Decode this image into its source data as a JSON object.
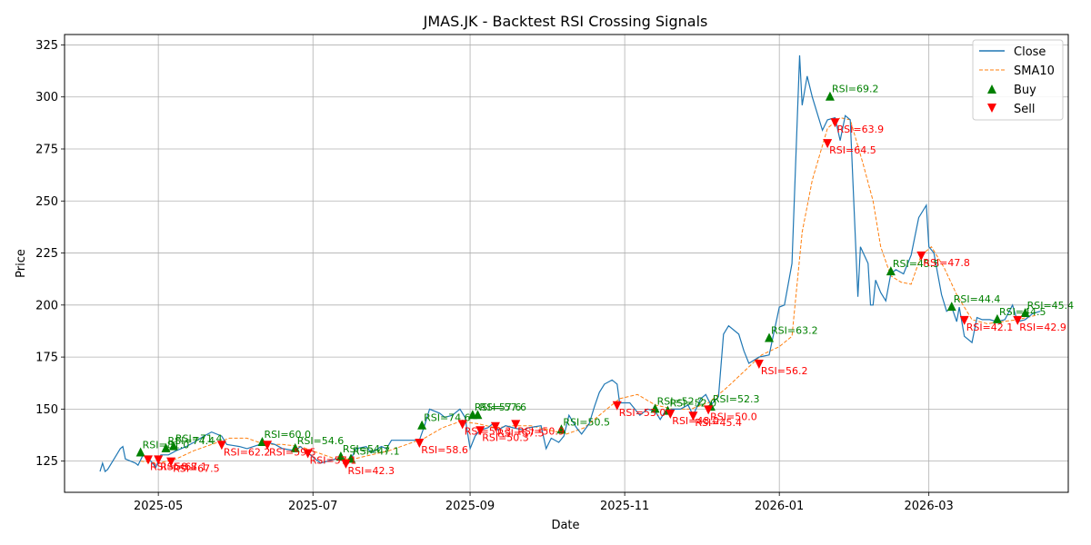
{
  "chart_data": {
    "type": "line",
    "title": "JMAS.JK - Backtest RSI Crossing Signals",
    "xlabel": "Date",
    "ylabel": "Price",
    "x_range": [
      "2025-03-25",
      "2026-04-25"
    ],
    "ylim": [
      110,
      330
    ],
    "x_ticks": [
      {
        "date": "2025-05-01",
        "label": "2025-05"
      },
      {
        "date": "2025-07-01",
        "label": "2025-07"
      },
      {
        "date": "2025-09-01",
        "label": "2025-09"
      },
      {
        "date": "2025-11-01",
        "label": "2025-11"
      },
      {
        "date": "2026-01-01",
        "label": "2026-01"
      },
      {
        "date": "2026-03-01",
        "label": "2026-03"
      }
    ],
    "y_ticks": [
      125,
      150,
      175,
      200,
      225,
      250,
      275,
      300,
      325
    ],
    "grid": true,
    "legend_position": "top-right",
    "colors": {
      "close": "#1f77b4",
      "sma": "#ff7f0e",
      "buy": "#008000",
      "sell": "#ff0000"
    },
    "series": [
      {
        "name": "Close",
        "style": "solid",
        "points": [
          [
            "2025-04-08",
            120
          ],
          [
            "2025-04-09",
            124
          ],
          [
            "2025-04-10",
            120
          ],
          [
            "2025-04-11",
            121
          ],
          [
            "2025-04-14",
            127
          ],
          [
            "2025-04-16",
            131
          ],
          [
            "2025-04-17",
            132
          ],
          [
            "2025-04-18",
            126
          ],
          [
            "2025-04-22",
            124
          ],
          [
            "2025-04-23",
            123
          ],
          [
            "2025-04-25",
            128
          ],
          [
            "2025-04-28",
            125
          ],
          [
            "2025-04-30",
            122
          ],
          [
            "2025-05-02",
            128
          ],
          [
            "2025-05-05",
            128
          ],
          [
            "2025-05-08",
            130
          ],
          [
            "2025-05-12",
            132
          ],
          [
            "2025-05-15",
            134
          ],
          [
            "2025-05-19",
            137
          ],
          [
            "2025-05-22",
            139
          ],
          [
            "2025-05-26",
            137
          ],
          [
            "2025-05-28",
            133
          ],
          [
            "2025-06-02",
            132
          ],
          [
            "2025-06-05",
            131
          ],
          [
            "2025-06-10",
            133
          ],
          [
            "2025-06-13",
            134
          ],
          [
            "2025-06-16",
            133
          ],
          [
            "2025-06-19",
            131
          ],
          [
            "2025-06-24",
            130
          ],
          [
            "2025-06-26",
            132
          ],
          [
            "2025-06-30",
            128
          ],
          [
            "2025-07-02",
            126
          ],
          [
            "2025-07-04",
            124
          ],
          [
            "2025-07-07",
            125
          ],
          [
            "2025-07-10",
            126
          ],
          [
            "2025-07-14",
            125
          ],
          [
            "2025-07-16",
            126
          ],
          [
            "2025-07-18",
            131
          ],
          [
            "2025-07-22",
            132
          ],
          [
            "2025-07-24",
            129
          ],
          [
            "2025-07-28",
            132
          ],
          [
            "2025-07-30",
            131
          ],
          [
            "2025-08-01",
            135
          ],
          [
            "2025-08-06",
            135
          ],
          [
            "2025-08-12",
            135
          ],
          [
            "2025-08-14",
            142
          ],
          [
            "2025-08-16",
            150
          ],
          [
            "2025-08-20",
            148
          ],
          [
            "2025-08-22",
            146
          ],
          [
            "2025-08-25",
            147
          ],
          [
            "2025-08-28",
            150
          ],
          [
            "2025-08-30",
            146
          ],
          [
            "2025-09-01",
            131
          ],
          [
            "2025-09-03",
            137
          ],
          [
            "2025-09-05",
            140
          ],
          [
            "2025-09-08",
            141
          ],
          [
            "2025-09-10",
            143
          ],
          [
            "2025-09-12",
            140
          ],
          [
            "2025-09-15",
            142
          ],
          [
            "2025-09-18",
            141
          ],
          [
            "2025-09-22",
            140
          ],
          [
            "2025-09-24",
            141
          ],
          [
            "2025-09-29",
            142
          ],
          [
            "2025-10-01",
            131
          ],
          [
            "2025-10-03",
            136
          ],
          [
            "2025-10-06",
            134
          ],
          [
            "2025-10-08",
            137
          ],
          [
            "2025-10-10",
            147
          ],
          [
            "2025-10-13",
            141
          ],
          [
            "2025-10-15",
            138
          ],
          [
            "2025-10-18",
            143
          ],
          [
            "2025-10-20",
            151
          ],
          [
            "2025-10-22",
            158
          ],
          [
            "2025-10-24",
            162
          ],
          [
            "2025-10-27",
            164
          ],
          [
            "2025-10-29",
            162
          ],
          [
            "2025-10-30",
            153
          ],
          [
            "2025-11-03",
            153
          ],
          [
            "2025-11-05",
            150
          ],
          [
            "2025-11-07",
            147
          ],
          [
            "2025-11-10",
            150
          ],
          [
            "2025-11-13",
            149
          ],
          [
            "2025-11-15",
            145
          ],
          [
            "2025-11-17",
            149
          ],
          [
            "2025-11-20",
            150
          ],
          [
            "2025-11-23",
            150
          ],
          [
            "2025-11-26",
            152
          ],
          [
            "2025-11-28",
            147
          ],
          [
            "2025-12-01",
            155
          ],
          [
            "2025-12-03",
            157
          ],
          [
            "2025-12-05",
            152
          ],
          [
            "2025-12-08",
            156
          ],
          [
            "2025-12-10",
            186
          ],
          [
            "2025-12-12",
            190
          ],
          [
            "2025-12-16",
            186
          ],
          [
            "2025-12-18",
            178
          ],
          [
            "2025-12-20",
            172
          ],
          [
            "2025-12-24",
            175
          ],
          [
            "2025-12-28",
            176
          ],
          [
            "2026-01-01",
            199
          ],
          [
            "2026-01-03",
            200
          ],
          [
            "2026-01-06",
            220
          ],
          [
            "2026-01-09",
            320
          ],
          [
            "2026-01-10",
            296
          ],
          [
            "2026-01-12",
            310
          ],
          [
            "2026-01-14",
            300
          ],
          [
            "2026-01-16",
            292
          ],
          [
            "2026-01-18",
            284
          ],
          [
            "2026-01-20",
            289
          ],
          [
            "2026-01-23",
            290
          ],
          [
            "2026-01-25",
            279
          ],
          [
            "2026-01-27",
            291
          ],
          [
            "2026-01-29",
            289
          ],
          [
            "2026-02-01",
            204
          ],
          [
            "2026-02-02",
            228
          ],
          [
            "2026-02-05",
            220
          ],
          [
            "2026-02-06",
            200
          ],
          [
            "2026-02-07",
            200
          ],
          [
            "2026-02-08",
            212
          ],
          [
            "2026-02-10",
            206
          ],
          [
            "2026-02-12",
            202
          ],
          [
            "2026-02-14",
            215
          ],
          [
            "2026-02-16",
            217
          ],
          [
            "2026-02-19",
            215
          ],
          [
            "2026-02-22",
            224
          ],
          [
            "2026-02-25",
            242
          ],
          [
            "2026-02-28",
            248
          ],
          [
            "2026-03-01",
            228
          ],
          [
            "2026-03-03",
            225
          ],
          [
            "2026-03-06",
            205
          ],
          [
            "2026-03-08",
            197
          ],
          [
            "2026-03-10",
            199
          ],
          [
            "2026-03-12",
            192
          ],
          [
            "2026-03-13",
            199
          ],
          [
            "2026-03-15",
            185
          ],
          [
            "2026-03-18",
            182
          ],
          [
            "2026-03-20",
            194
          ],
          [
            "2026-03-22",
            193
          ],
          [
            "2026-03-25",
            193
          ],
          [
            "2026-03-28",
            192
          ],
          [
            "2026-03-31",
            193
          ],
          [
            "2026-04-03",
            200
          ],
          [
            "2026-04-05",
            192
          ],
          [
            "2026-04-08",
            193
          ],
          [
            "2026-04-11",
            196
          ],
          [
            "2026-04-14",
            197
          ]
        ]
      },
      {
        "name": "SMA10",
        "style": "dashed",
        "points": [
          [
            "2025-04-24",
            125
          ],
          [
            "2025-05-01",
            124
          ],
          [
            "2025-05-08",
            126
          ],
          [
            "2025-05-15",
            130
          ],
          [
            "2025-05-22",
            133
          ],
          [
            "2025-05-29",
            136
          ],
          [
            "2025-06-05",
            136
          ],
          [
            "2025-06-12",
            133
          ],
          [
            "2025-06-19",
            133
          ],
          [
            "2025-06-26",
            132
          ],
          [
            "2025-07-03",
            129
          ],
          [
            "2025-07-10",
            126
          ],
          [
            "2025-07-17",
            126
          ],
          [
            "2025-07-24",
            128
          ],
          [
            "2025-07-31",
            130
          ],
          [
            "2025-08-07",
            133
          ],
          [
            "2025-08-14",
            136
          ],
          [
            "2025-08-21",
            141
          ],
          [
            "2025-08-28",
            144
          ],
          [
            "2025-09-04",
            143
          ],
          [
            "2025-09-11",
            141
          ],
          [
            "2025-09-18",
            142
          ],
          [
            "2025-09-25",
            142
          ],
          [
            "2025-10-02",
            140
          ],
          [
            "2025-10-09",
            138
          ],
          [
            "2025-10-16",
            141
          ],
          [
            "2025-10-23",
            148
          ],
          [
            "2025-10-30",
            155
          ],
          [
            "2025-11-06",
            157
          ],
          [
            "2025-11-13",
            152
          ],
          [
            "2025-11-20",
            150
          ],
          [
            "2025-11-27",
            150
          ],
          [
            "2025-12-04",
            153
          ],
          [
            "2025-12-11",
            160
          ],
          [
            "2025-12-18",
            168
          ],
          [
            "2025-12-25",
            176
          ],
          [
            "2026-01-01",
            180
          ],
          [
            "2026-01-06",
            185
          ],
          [
            "2026-01-10",
            235
          ],
          [
            "2026-01-14",
            260
          ],
          [
            "2026-01-20",
            285
          ],
          [
            "2026-01-25",
            290
          ],
          [
            "2026-01-29",
            289
          ],
          [
            "2026-02-03",
            268
          ],
          [
            "2026-02-07",
            250
          ],
          [
            "2026-02-10",
            228
          ],
          [
            "2026-02-14",
            214
          ],
          [
            "2026-02-18",
            211
          ],
          [
            "2026-02-22",
            210
          ],
          [
            "2026-02-26",
            224
          ],
          [
            "2026-03-02",
            228
          ],
          [
            "2026-03-07",
            218
          ],
          [
            "2026-03-12",
            205
          ],
          [
            "2026-03-18",
            193
          ],
          [
            "2026-03-24",
            191
          ],
          [
            "2026-03-30",
            192
          ],
          [
            "2026-04-05",
            193
          ],
          [
            "2026-04-12",
            195
          ]
        ]
      }
    ],
    "buy_signals": [
      {
        "date": "2025-04-24",
        "price": 129,
        "label": "RSI=81.0"
      },
      {
        "date": "2025-05-04",
        "price": 131,
        "label": "RSI=74.4"
      },
      {
        "date": "2025-05-07",
        "price": 132,
        "label": "RSI=71.4"
      },
      {
        "date": "2025-06-11",
        "price": 134,
        "label": "RSI=60.0"
      },
      {
        "date": "2025-06-24",
        "price": 131,
        "label": "RSI=54.6"
      },
      {
        "date": "2025-07-12",
        "price": 127,
        "label": "RSI=54.7"
      },
      {
        "date": "2025-07-16",
        "price": 126,
        "label": "RSI=47.1"
      },
      {
        "date": "2025-08-13",
        "price": 142,
        "label": "RSI=74.6"
      },
      {
        "date": "2025-09-02",
        "price": 147,
        "label": "RSI=57.6"
      },
      {
        "date": "2025-09-04",
        "price": 147,
        "label": "RSI=57.6"
      },
      {
        "date": "2025-10-07",
        "price": 140,
        "label": "RSI=50.5"
      },
      {
        "date": "2025-11-13",
        "price": 150,
        "label": "RSI=52.2"
      },
      {
        "date": "2025-11-18",
        "price": 149,
        "label": "RSI=52.0"
      },
      {
        "date": "2025-12-05",
        "price": 151,
        "label": "RSI=52.3"
      },
      {
        "date": "2025-12-28",
        "price": 184,
        "label": "RSI=63.2"
      },
      {
        "date": "2026-01-21",
        "price": 300,
        "label": "RSI=69.2"
      },
      {
        "date": "2026-02-14",
        "price": 216,
        "label": "RSI=45.5"
      },
      {
        "date": "2026-03-10",
        "price": 199,
        "label": "RSI=44.4"
      },
      {
        "date": "2026-03-28",
        "price": 193,
        "label": "RSI=44.5"
      },
      {
        "date": "2026-04-08",
        "price": 196,
        "label": "RSI=45.4"
      }
    ],
    "sell_signals": [
      {
        "date": "2025-04-27",
        "price": 126,
        "label": "RSI=58.8"
      },
      {
        "date": "2025-05-01",
        "price": 126,
        "label": "RSI=67.1"
      },
      {
        "date": "2025-05-06",
        "price": 125,
        "label": "RSI=67.5"
      },
      {
        "date": "2025-05-26",
        "price": 133,
        "label": "RSI=62.2"
      },
      {
        "date": "2025-06-13",
        "price": 133,
        "label": "RSI=59.5"
      },
      {
        "date": "2025-06-29",
        "price": 129,
        "label": "RSI=57.1"
      },
      {
        "date": "2025-07-14",
        "price": 124,
        "label": "RSI=42.3"
      },
      {
        "date": "2025-08-12",
        "price": 134,
        "label": "RSI=58.6"
      },
      {
        "date": "2025-08-29",
        "price": 143,
        "label": "RSI=50.3"
      },
      {
        "date": "2025-09-05",
        "price": 140,
        "label": "RSI=50.3"
      },
      {
        "date": "2025-09-11",
        "price": 142,
        "label": "RSI=57.5"
      },
      {
        "date": "2025-09-19",
        "price": 143,
        "label": "RSI=50.9"
      },
      {
        "date": "2025-10-29",
        "price": 152,
        "label": "RSI=53.0"
      },
      {
        "date": "2025-11-19",
        "price": 148,
        "label": "RSI=48.0"
      },
      {
        "date": "2025-11-28",
        "price": 147,
        "label": "RSI=45.4"
      },
      {
        "date": "2025-12-04",
        "price": 150,
        "label": "RSI=50.0"
      },
      {
        "date": "2025-12-24",
        "price": 172,
        "label": "RSI=56.2"
      },
      {
        "date": "2026-01-20",
        "price": 278,
        "label": "RSI=64.5"
      },
      {
        "date": "2026-01-23",
        "price": 288,
        "label": "RSI=63.9"
      },
      {
        "date": "2026-02-26",
        "price": 224,
        "label": "RSI=47.8"
      },
      {
        "date": "2026-03-15",
        "price": 193,
        "label": "RSI=42.1"
      },
      {
        "date": "2026-04-05",
        "price": 193,
        "label": "RSI=42.9"
      }
    ]
  },
  "legend": {
    "close_label": "Close",
    "sma_label": "SMA10",
    "buy_label": "Buy",
    "sell_label": "Sell"
  }
}
